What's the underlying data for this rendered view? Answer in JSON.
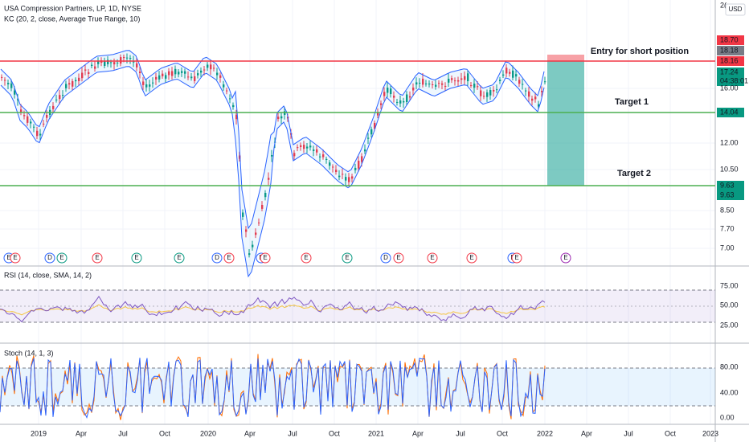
{
  "header": {
    "symbol": "USA Compression Partners, LP, 1D, NYSE",
    "indicator": "KC (20, 2, close, Average True Range, 10)"
  },
  "price_axis": {
    "cut_label": "2(",
    "currency": "USD",
    "labels": [
      "18.70",
      "18.18",
      "18.16",
      "17.24",
      "04:38:01",
      "16.00",
      "14.04",
      "12.00",
      "10.50",
      "9.63",
      "9.63",
      "8.50",
      "7.70",
      "7.00"
    ]
  },
  "annotations": [
    "Entry for short position",
    "Target 1",
    "Target 2"
  ],
  "events": [
    "E",
    "E",
    "D",
    "E",
    "E",
    "E",
    "E",
    "D",
    "E",
    "E",
    "E",
    "E",
    "E",
    "D",
    "E",
    "E",
    "E",
    "E",
    "E",
    "E"
  ],
  "rsi": {
    "title": "RSI (14, close, SMA, 14, 2)",
    "labels": [
      "75.00",
      "50.00",
      "25.00"
    ]
  },
  "stoch": {
    "title": "Stoch (14, 1, 3)",
    "labels": [
      "80.00",
      "40.00",
      "0.00"
    ]
  },
  "time_axis": [
    "2019",
    "Apr",
    "Jul",
    "Oct",
    "2020",
    "Apr",
    "Jul",
    "Oct",
    "2021",
    "Apr",
    "Jul",
    "Oct",
    "2022",
    "Apr",
    "Jul",
    "Oct",
    "2023"
  ]
}
